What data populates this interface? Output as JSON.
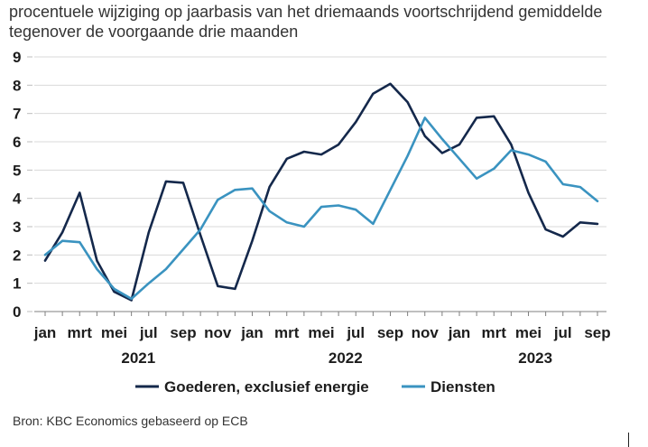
{
  "chart_data": {
    "type": "line",
    "title": "procentuele wijziging op jaarbasis van het driemaands voortschrijdend gemiddelde tegenover de voorgaande drie maanden",
    "xlabel": "",
    "ylabel": "",
    "ylim": [
      0,
      9
    ],
    "yticks": [
      "0",
      "1",
      "2",
      "3",
      "4",
      "5",
      "6",
      "7",
      "8",
      "9"
    ],
    "grid": true,
    "legend": "bottom",
    "x_tick_labels": [
      "jan",
      "mrt",
      "mei",
      "jul",
      "sep",
      "nov",
      "jan",
      "mrt",
      "mei",
      "jul",
      "sep",
      "nov",
      "jan",
      "mrt",
      "mei",
      "jul",
      "sep"
    ],
    "year_labels": [
      "2021",
      "2022",
      "2023"
    ],
    "x": [
      "2021-01",
      "2021-02",
      "2021-03",
      "2021-04",
      "2021-05",
      "2021-06",
      "2021-07",
      "2021-08",
      "2021-09",
      "2021-10",
      "2021-11",
      "2021-12",
      "2022-01",
      "2022-02",
      "2022-03",
      "2022-04",
      "2022-05",
      "2022-06",
      "2022-07",
      "2022-08",
      "2022-09",
      "2022-10",
      "2022-11",
      "2022-12",
      "2023-01",
      "2023-02",
      "2023-03",
      "2023-04",
      "2023-05",
      "2023-06",
      "2023-07",
      "2023-08",
      "2023-09"
    ],
    "series": [
      {
        "name": "Goederen, exclusief energie",
        "color": "#14284b",
        "values": [
          1.8,
          2.8,
          4.2,
          1.8,
          0.7,
          0.4,
          2.8,
          4.6,
          4.55,
          2.7,
          0.9,
          0.8,
          2.5,
          4.4,
          5.4,
          5.65,
          5.55,
          5.9,
          6.7,
          7.7,
          8.05,
          7.4,
          6.2,
          5.6,
          5.9,
          6.85,
          6.9,
          5.9,
          4.2,
          2.9,
          2.65,
          3.15,
          3.1
        ]
      },
      {
        "name": "Diensten",
        "color": "#3a93c0",
        "values": [
          2.0,
          2.5,
          2.45,
          1.5,
          0.8,
          0.45,
          1.0,
          1.5,
          2.2,
          2.9,
          3.95,
          4.3,
          4.35,
          3.55,
          3.15,
          3.0,
          3.7,
          3.75,
          3.6,
          3.1,
          4.3,
          5.5,
          6.85,
          6.1,
          5.4,
          4.7,
          5.05,
          5.7,
          5.55,
          5.3,
          4.5,
          4.4,
          3.9
        ]
      }
    ]
  },
  "source": "Bron: KBC Economics gebaseerd op ECB"
}
